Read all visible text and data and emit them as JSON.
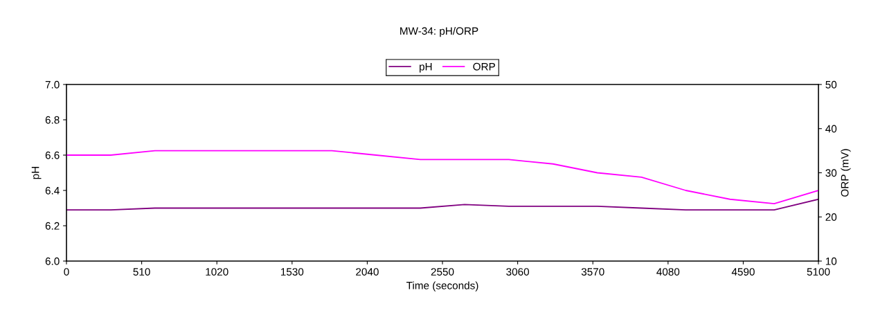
{
  "chart_data": {
    "type": "line",
    "title": "MW-34: pH/ORP",
    "xlabel": "Time (seconds)",
    "ylabel": "pH",
    "y2label": "ORP (mV)",
    "x": [
      0,
      300,
      600,
      900,
      1200,
      1500,
      1800,
      2100,
      2400,
      2700,
      3000,
      3300,
      3600,
      3900,
      4200,
      4500,
      4800,
      5100
    ],
    "series": [
      {
        "name": "pH",
        "color": "#800080",
        "values": [
          6.29,
          6.29,
          6.3,
          6.3,
          6.3,
          6.3,
          6.3,
          6.3,
          6.3,
          6.32,
          6.31,
          6.31,
          6.31,
          6.3,
          6.29,
          6.29,
          6.29,
          6.35
        ]
      },
      {
        "name": "ORP",
        "color": "#ff00ff",
        "axis": "y2",
        "values": [
          34,
          34,
          35,
          35,
          35,
          35,
          35,
          34,
          33,
          33,
          33,
          32,
          30,
          29,
          26,
          24,
          23,
          26
        ]
      }
    ],
    "xlim": [
      0,
      5100
    ],
    "xticks": [
      0,
      510,
      1020,
      1530,
      2040,
      2550,
      3060,
      3570,
      4080,
      4590,
      5100
    ],
    "ylim": [
      6.0,
      7.0
    ],
    "yticks": [
      {
        "value": 6.0,
        "label": "6.0"
      },
      6.2,
      6.4,
      6.6,
      6.8,
      {
        "value": 7.0,
        "label": "7.0"
      }
    ],
    "y2lim": [
      10,
      50
    ],
    "y2ticks": [
      10,
      20,
      30,
      40,
      50
    ],
    "legend": "top",
    "grid": false,
    "marker": "none",
    "line_style": "solid"
  }
}
